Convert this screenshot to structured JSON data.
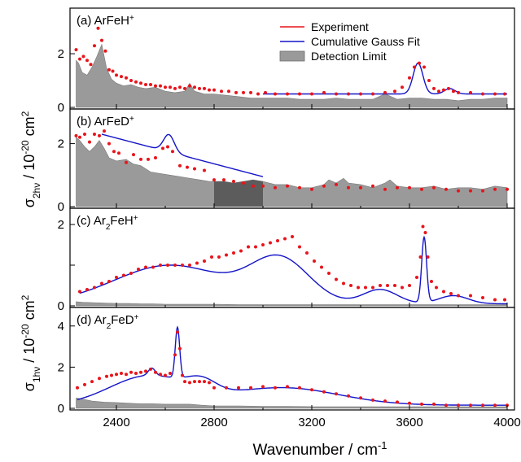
{
  "figure": {
    "xlabel": "Wavenumber / cm",
    "xlabel_sup": "-1",
    "ylabel_top": {
      "a": "σ",
      "sub": "2hν",
      "b": " / 10",
      "sup": "-20",
      "c": " cm",
      "sup2": "2"
    },
    "ylabel_bottom": {
      "a": "σ",
      "sub": "1hν",
      "b": " / 10",
      "sup": "-20",
      "c": " cm",
      "sup2": "2"
    },
    "legend": [
      {
        "label": "Experiment",
        "kind": "line",
        "color": "#e8141b"
      },
      {
        "label": "Cumulative Gauss Fit",
        "kind": "line",
        "color": "#1414c8"
      },
      {
        "label": "Detection Limit",
        "kind": "patch",
        "color": "#9a9a9a"
      }
    ],
    "colors": {
      "experiment": "#e8141b",
      "fit": "#1414c8",
      "limit": "#9a9a9a",
      "limit_dark": "#5c5c5c"
    }
  },
  "chart_data": [
    {
      "type": "scatter",
      "panel": "a",
      "label": {
        "prefix": "(a) ArFeH",
        "sup": "+"
      },
      "xlim": [
        2210,
        4030
      ],
      "ylim": [
        0,
        3.7
      ],
      "yticks": [
        0,
        2
      ],
      "xticks": [
        2400,
        2800,
        3200,
        3600,
        4000
      ],
      "show_xtick_labels": false,
      "series": [
        {
          "name": "Experiment",
          "kind": "points",
          "x": [
            2235,
            2250,
            2265,
            2280,
            2295,
            2310,
            2325,
            2340,
            2355,
            2370,
            2385,
            2400,
            2420,
            2440,
            2460,
            2480,
            2500,
            2520,
            2540,
            2560,
            2580,
            2600,
            2620,
            2640,
            2660,
            2680,
            2700,
            2720,
            2740,
            2760,
            2780,
            2800,
            2830,
            2860,
            2890,
            2920,
            2950,
            2980,
            3010,
            3050,
            3100,
            3150,
            3200,
            3250,
            3300,
            3350,
            3400,
            3450,
            3500,
            3540,
            3570,
            3600,
            3620,
            3640,
            3660,
            3680,
            3700,
            3720,
            3740,
            3760,
            3780,
            3800,
            3850,
            3900,
            3950,
            3990
          ],
          "y": [
            2.15,
            1.8,
            1.9,
            1.75,
            1.6,
            2.3,
            2.95,
            2.5,
            2.1,
            1.4,
            1.35,
            1.2,
            1.15,
            1.1,
            1.0,
            0.95,
            0.9,
            0.85,
            0.85,
            0.8,
            0.8,
            0.75,
            0.75,
            0.7,
            0.75,
            0.7,
            0.8,
            0.75,
            0.7,
            0.7,
            0.65,
            0.65,
            0.6,
            0.6,
            0.55,
            0.55,
            0.55,
            0.5,
            0.55,
            0.5,
            0.5,
            0.5,
            0.5,
            0.55,
            0.5,
            0.5,
            0.5,
            0.5,
            0.55,
            0.6,
            0.75,
            1.1,
            1.5,
            1.65,
            1.5,
            1.0,
            0.7,
            0.6,
            0.65,
            0.7,
            0.6,
            0.55,
            0.55,
            0.5,
            0.5,
            0.5
          ]
        },
        {
          "name": "Cumulative Gauss Fit",
          "kind": "fit",
          "x_start": 3000,
          "x_end": 4000,
          "baseline": 0.5,
          "peaks": [
            {
              "center": 3635,
              "amp": 1.15,
              "sigma": 20
            },
            {
              "center": 3765,
              "amp": 0.2,
              "sigma": 22
            }
          ]
        },
        {
          "name": "Detection Limit",
          "kind": "area",
          "x": [
            2235,
            2245,
            2260,
            2280,
            2300,
            2320,
            2340,
            2360,
            2380,
            2400,
            2430,
            2460,
            2490,
            2520,
            2560,
            2600,
            2640,
            2680,
            2700,
            2720,
            2760,
            2800,
            2850,
            2900,
            2950,
            3000,
            3050,
            3100,
            3150,
            3200,
            3250,
            3300,
            3350,
            3400,
            3450,
            3500,
            3550,
            3600,
            3650,
            3700,
            3750,
            3800,
            3850,
            3900,
            3950,
            4000
          ],
          "y": [
            1.75,
            1.65,
            1.3,
            1.2,
            1.5,
            1.9,
            2.35,
            1.45,
            1.05,
            0.9,
            0.8,
            0.85,
            0.75,
            0.7,
            0.75,
            0.6,
            0.55,
            0.6,
            0.9,
            0.6,
            0.5,
            0.5,
            0.45,
            0.4,
            0.35,
            0.35,
            0.35,
            0.35,
            0.3,
            0.3,
            0.3,
            0.35,
            0.3,
            0.3,
            0.3,
            0.5,
            0.3,
            0.35,
            0.35,
            0.3,
            0.3,
            0.25,
            0.3,
            0.3,
            0.35,
            0.35
          ]
        }
      ]
    },
    {
      "type": "scatter",
      "panel": "b",
      "label": {
        "prefix": "(b) ArFeD",
        "sup": "+"
      },
      "xlim": [
        2210,
        4030
      ],
      "ylim": [
        0,
        3.1
      ],
      "yticks": [
        0,
        2
      ],
      "xticks": [
        2400,
        2800,
        3200,
        3600,
        4000
      ],
      "show_xtick_labels": false,
      "series": [
        {
          "name": "Experiment",
          "kind": "points",
          "x": [
            2235,
            2250,
            2270,
            2290,
            2310,
            2330,
            2350,
            2370,
            2390,
            2410,
            2440,
            2470,
            2500,
            2530,
            2560,
            2590,
            2610,
            2630,
            2660,
            2690,
            2720,
            2760,
            2800,
            2840,
            2880,
            2920,
            2960,
            3000,
            3050,
            3100,
            3150,
            3200,
            3250,
            3300,
            3350,
            3400,
            3450,
            3500,
            3550,
            3600,
            3650,
            3700,
            3750,
            3800,
            3850,
            3900,
            3950,
            4000
          ],
          "y": [
            2.25,
            2.2,
            2.3,
            2.05,
            2.3,
            2.25,
            2.4,
            2.0,
            1.75,
            1.7,
            1.4,
            1.65,
            1.5,
            1.5,
            1.55,
            1.85,
            1.9,
            1.75,
            1.3,
            1.25,
            1.2,
            1.15,
            0.85,
            0.85,
            0.8,
            0.75,
            0.65,
            0.65,
            0.6,
            0.65,
            0.6,
            0.55,
            0.65,
            0.7,
            0.6,
            0.6,
            0.65,
            0.55,
            0.6,
            0.6,
            0.55,
            0.6,
            0.55,
            0.5,
            0.5,
            0.5,
            0.55,
            0.55
          ]
        },
        {
          "name": "Cumulative Gauss Fit",
          "kind": "fit",
          "x_start": 2340,
          "x_end": 3000,
          "decay": {
            "x0": 2340,
            "start": 2.3,
            "end": 0.95,
            "x1": 3000
          },
          "peaks": [
            {
              "center": 2615,
              "amp": 0.55,
              "sigma": 22
            }
          ]
        },
        {
          "name": "Detection Limit",
          "kind": "area",
          "x": [
            2235,
            2250,
            2270,
            2290,
            2310,
            2330,
            2350,
            2370,
            2400,
            2440,
            2470,
            2500,
            2540,
            2580,
            2620,
            2660,
            2700,
            2740,
            2780,
            2800,
            2840,
            2880,
            2920,
            2960,
            3000,
            3050,
            3100,
            3150,
            3200,
            3250,
            3270,
            3300,
            3330,
            3350,
            3400,
            3450,
            3500,
            3520,
            3550,
            3600,
            3650,
            3700,
            3750,
            3800,
            3850,
            3900,
            3950,
            4000
          ],
          "y": [
            2.2,
            2.1,
            1.9,
            1.75,
            1.9,
            2.1,
            1.85,
            1.55,
            1.45,
            1.5,
            1.35,
            1.3,
            1.1,
            1.05,
            1.0,
            0.95,
            0.9,
            0.85,
            0.8,
            0.8,
            0.8,
            0.75,
            0.8,
            0.85,
            0.8,
            0.7,
            0.7,
            0.6,
            0.6,
            0.7,
            0.85,
            0.75,
            0.9,
            0.75,
            0.7,
            0.6,
            0.75,
            0.85,
            0.65,
            0.6,
            0.6,
            0.65,
            0.55,
            0.6,
            0.6,
            0.55,
            0.65,
            0.6
          ]
        },
        {
          "name": "Detection Limit (highlighted)",
          "kind": "area_dark",
          "x_start": 2800,
          "x_end": 3000
        }
      ]
    },
    {
      "type": "scatter",
      "panel": "c",
      "label": {
        "prefix": "(c) Ar",
        "sub": "2",
        "suffix": "FeH",
        "sup": "+"
      },
      "xlim": [
        2210,
        4030
      ],
      "ylim": [
        0,
        2.4
      ],
      "yticks": [
        0,
        1,
        2
      ],
      "ytick_labels": [
        "0",
        "",
        "2"
      ],
      "xticks": [
        2400,
        2800,
        3200,
        3600,
        4000
      ],
      "show_xtick_labels": false,
      "series": [
        {
          "name": "Experiment",
          "kind": "points",
          "x": [
            2250,
            2280,
            2310,
            2340,
            2370,
            2400,
            2430,
            2460,
            2490,
            2520,
            2550,
            2580,
            2610,
            2640,
            2670,
            2700,
            2730,
            2760,
            2790,
            2820,
            2850,
            2880,
            2910,
            2940,
            2970,
            3000,
            3030,
            3060,
            3090,
            3120,
            3150,
            3180,
            3210,
            3240,
            3270,
            3300,
            3330,
            3360,
            3390,
            3420,
            3450,
            3480,
            3510,
            3540,
            3570,
            3600,
            3630,
            3645,
            3655,
            3665,
            3675,
            3690,
            3710,
            3740,
            3770,
            3800,
            3850,
            3900,
            3950,
            3990
          ],
          "y": [
            0.35,
            0.4,
            0.45,
            0.55,
            0.6,
            0.7,
            0.75,
            0.8,
            0.9,
            0.95,
            0.95,
            1.0,
            1.0,
            1.0,
            1.0,
            1.0,
            1.05,
            1.1,
            1.2,
            1.2,
            1.25,
            1.3,
            1.35,
            1.45,
            1.45,
            1.5,
            1.55,
            1.6,
            1.65,
            1.7,
            1.45,
            1.3,
            1.1,
            0.95,
            0.8,
            0.65,
            0.55,
            0.5,
            0.45,
            0.45,
            0.45,
            0.5,
            0.5,
            0.5,
            0.45,
            0.5,
            0.7,
            1.2,
            1.95,
            1.8,
            1.2,
            0.6,
            0.45,
            0.35,
            0.3,
            0.25,
            0.25,
            0.2,
            0.15,
            0.15
          ]
        },
        {
          "name": "Cumulative Gauss Fit",
          "kind": "fit",
          "x_start": 2250,
          "x_end": 4000,
          "baseline": 0.05,
          "peaks": [
            {
              "center": 2620,
              "amp": 0.95,
              "sigma": 230
            },
            {
              "center": 3070,
              "amp": 1.05,
              "sigma": 120
            },
            {
              "center": 3480,
              "amp": 0.35,
              "sigma": 70
            },
            {
              "center": 3660,
              "amp": 1.6,
              "sigma": 10
            },
            {
              "center": 3780,
              "amp": 0.2,
              "sigma": 60
            }
          ]
        },
        {
          "name": "Detection Limit",
          "kind": "area",
          "x": [
            2235,
            2260,
            2300,
            2350,
            2400,
            2450,
            2500,
            2550,
            2600,
            2700,
            2800,
            2900,
            3000,
            3100,
            3200,
            3300,
            3400,
            3500,
            3600,
            3700,
            3800,
            3900,
            4000
          ],
          "y": [
            0.1,
            0.09,
            0.08,
            0.07,
            0.06,
            0.06,
            0.05,
            0.05,
            0.04,
            0.04,
            0.04,
            0.03,
            0.03,
            0.03,
            0.03,
            0.03,
            0.03,
            0.03,
            0.03,
            0.03,
            0.03,
            0.03,
            0.03
          ]
        }
      ]
    },
    {
      "type": "scatter",
      "panel": "d",
      "label": {
        "prefix": "(d) Ar",
        "sub": "2",
        "suffix": "FeD",
        "sup": "+"
      },
      "xlim": [
        2210,
        4030
      ],
      "ylim": [
        0,
        4.9
      ],
      "yticks": [
        0,
        2,
        4
      ],
      "xticks": [
        2400,
        2800,
        3200,
        3600,
        4000
      ],
      "xtick_labels": [
        "2400",
        "2800",
        "3200",
        "3600",
        "4000"
      ],
      "show_xtick_labels": true,
      "series": [
        {
          "name": "Experiment",
          "kind": "points",
          "x": [
            2240,
            2270,
            2300,
            2330,
            2360,
            2380,
            2400,
            2420,
            2440,
            2460,
            2480,
            2500,
            2520,
            2540,
            2560,
            2580,
            2600,
            2620,
            2640,
            2650,
            2660,
            2670,
            2680,
            2700,
            2720,
            2740,
            2760,
            2780,
            2800,
            2850,
            2900,
            2950,
            3000,
            3050,
            3100,
            3150,
            3200,
            3250,
            3300,
            3350,
            3400,
            3450,
            3500,
            3550,
            3600,
            3650,
            3700,
            3750,
            3800,
            3850,
            3900,
            3950,
            4000
          ],
          "y": [
            1.0,
            1.15,
            1.3,
            1.45,
            1.55,
            1.6,
            1.65,
            1.7,
            1.65,
            1.75,
            1.7,
            1.75,
            1.8,
            1.9,
            1.75,
            1.65,
            1.6,
            1.7,
            2.6,
            3.7,
            2.9,
            1.6,
            1.3,
            1.25,
            1.3,
            1.3,
            1.3,
            1.25,
            1.0,
            1.0,
            1.0,
            1.0,
            1.05,
            1.0,
            1.05,
            1.0,
            0.9,
            0.8,
            0.7,
            0.6,
            0.5,
            0.4,
            0.35,
            0.3,
            0.25,
            0.2,
            0.2,
            0.15,
            0.15,
            0.15,
            0.15,
            0.15,
            0.15
          ]
        },
        {
          "name": "Cumulative Gauss Fit",
          "kind": "fit",
          "x_start": 2240,
          "x_end": 4000,
          "baseline": 0.15,
          "peaks": [
            {
              "center": 2530,
              "amp": 1.4,
              "sigma": 160
            },
            {
              "center": 2545,
              "amp": 0.35,
              "sigma": 14
            },
            {
              "center": 2650,
              "amp": 2.45,
              "sigma": 9
            },
            {
              "center": 2750,
              "amp": 0.55,
              "sigma": 60
            },
            {
              "center": 3080,
              "amp": 0.85,
              "sigma": 230
            }
          ]
        },
        {
          "name": "Detection Limit",
          "kind": "area",
          "x": [
            2235,
            2260,
            2300,
            2350,
            2400,
            2450,
            2500,
            2550,
            2600,
            2650,
            2700,
            2750,
            2800,
            2900,
            3000,
            3100,
            3200,
            3300,
            3400,
            3500,
            3600,
            3700,
            3800,
            3900,
            4000
          ],
          "y": [
            0.5,
            0.45,
            0.35,
            0.3,
            0.28,
            0.25,
            0.22,
            0.22,
            0.2,
            0.2,
            0.2,
            0.15,
            0.12,
            0.12,
            0.1,
            0.1,
            0.08,
            0.08,
            0.08,
            0.08,
            0.08,
            0.08,
            0.08,
            0.08,
            0.08
          ]
        }
      ]
    }
  ]
}
